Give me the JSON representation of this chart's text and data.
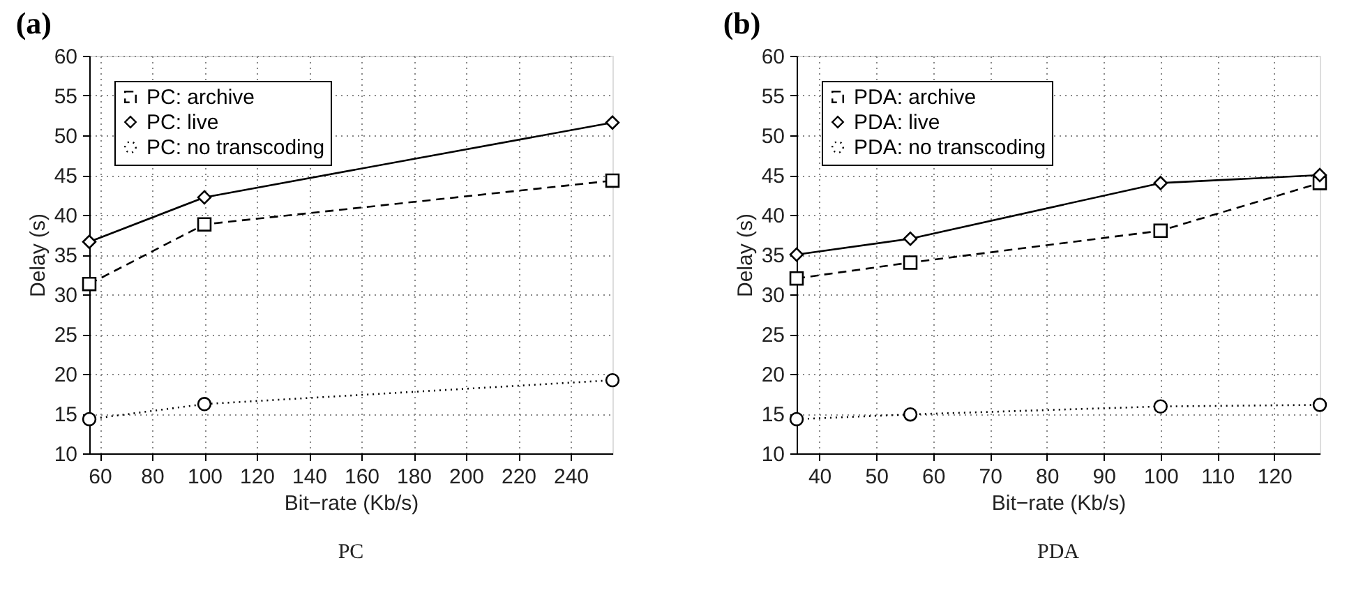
{
  "chart_data": [
    {
      "type": "line",
      "title": "(a)",
      "xlabel": "Bit−rate (Kb/s)",
      "ylabel": "Delay (s)",
      "annotations": [
        "PC"
      ],
      "xlim": [
        56,
        256
      ],
      "xticks": [
        60,
        80,
        100,
        120,
        140,
        160,
        180,
        200,
        220,
        240
      ],
      "ylim": [
        10,
        60
      ],
      "yticks": [
        10,
        15,
        20,
        25,
        30,
        35,
        40,
        45,
        50,
        55,
        60
      ],
      "grid": true,
      "legend": "top left",
      "series": [
        {
          "name": "PC: archive",
          "color": "#000000",
          "marker": "square",
          "line_style": "dashed",
          "x": [
            56,
            100,
            256
          ],
          "values": [
            31.3,
            38.8,
            44.3
          ]
        },
        {
          "name": "PC: live",
          "color": "#000000",
          "marker": "diamond",
          "line_style": "solid",
          "x": [
            56,
            100,
            256
          ],
          "values": [
            36.6,
            42.2,
            51.6
          ]
        },
        {
          "name": "PC: no transcoding",
          "color": "#000000",
          "marker": "circle",
          "line_style": "dotted",
          "x": [
            56,
            100,
            256
          ],
          "values": [
            14.3,
            16.2,
            19.2
          ]
        }
      ]
    },
    {
      "type": "line",
      "title": "(b)",
      "xlabel": "Bit−rate (Kb/s)",
      "ylabel": "Delay (s)",
      "annotations": [
        "PDA"
      ],
      "xlim": [
        36,
        128
      ],
      "xticks": [
        40,
        50,
        60,
        70,
        80,
        90,
        100,
        110,
        120
      ],
      "ylim": [
        10,
        60
      ],
      "yticks": [
        10,
        15,
        20,
        25,
        30,
        35,
        40,
        45,
        50,
        55,
        60
      ],
      "grid": true,
      "legend": "top left",
      "series": [
        {
          "name": "PDA: archive",
          "color": "#000000",
          "marker": "square",
          "line_style": "dashed",
          "x": [
            36,
            56,
            100,
            128
          ],
          "values": [
            32,
            34,
            38,
            44
          ]
        },
        {
          "name": "PDA: live",
          "color": "#000000",
          "marker": "diamond",
          "line_style": "solid",
          "x": [
            36,
            56,
            100,
            128
          ],
          "values": [
            35,
            37,
            44,
            45
          ]
        },
        {
          "name": "PDA: no transcoding",
          "color": "#000000",
          "marker": "circle",
          "line_style": "dotted",
          "x": [
            36,
            56,
            100,
            128
          ],
          "values": [
            14.3,
            14.9,
            15.9,
            16.1
          ]
        }
      ]
    }
  ]
}
